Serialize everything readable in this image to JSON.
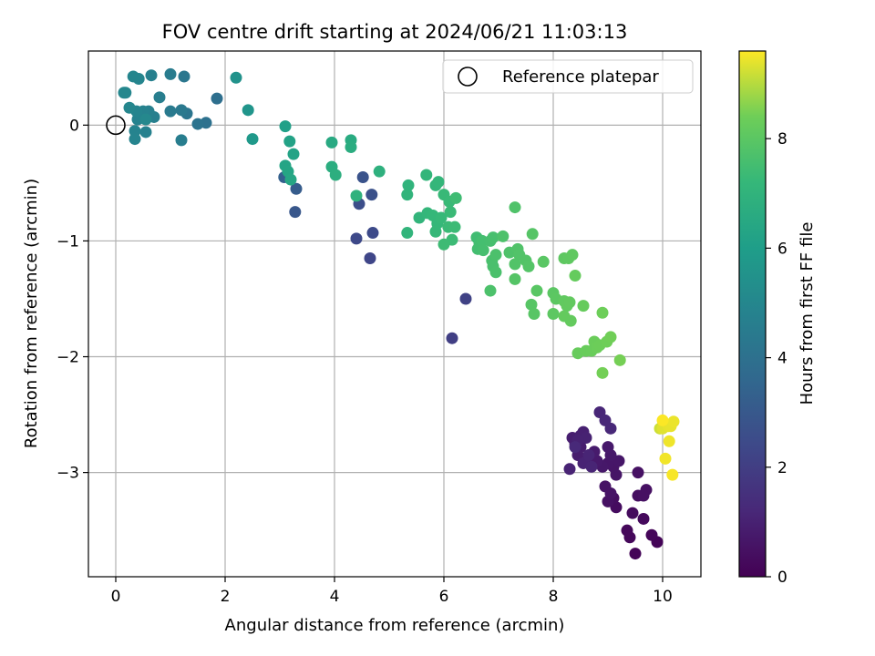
{
  "chart_data": {
    "type": "scatter",
    "title": "FOV centre drift starting at 2024/06/21 11:03:13",
    "xlabel": "Angular distance from reference (arcmin)",
    "ylabel": "Rotation from reference (arcmin)",
    "xlim": [
      -0.5,
      10.7
    ],
    "ylim": [
      -3.9,
      0.64
    ],
    "xticks": [
      0,
      2,
      4,
      6,
      8,
      10
    ],
    "yticks": [
      -3,
      -2,
      -1,
      0
    ],
    "xtick_labels": [
      "0",
      "2",
      "4",
      "6",
      "8",
      "10"
    ],
    "ytick_labels": [
      "−3",
      "−2",
      "−1",
      "0"
    ],
    "grid": true,
    "legend": {
      "position": "top-right",
      "entries": [
        {
          "label": "Reference platepar",
          "marker": "open-circle"
        }
      ]
    },
    "reference_point": {
      "x": 0,
      "y": 0
    },
    "colorbar": {
      "label": "Hours from first FF file",
      "range": [
        0,
        9.6
      ],
      "ticks": [
        0,
        2,
        4,
        6,
        8
      ],
      "tick_labels": [
        "0",
        "2",
        "4",
        "6",
        "8"
      ],
      "colormap": "viridis"
    },
    "points": [
      {
        "x": 9.5,
        "y": -3.7,
        "c": 0.1
      },
      {
        "x": 9.9,
        "y": -3.6,
        "c": 0.1
      },
      {
        "x": 9.8,
        "y": -3.54,
        "c": 0.15
      },
      {
        "x": 9.35,
        "y": -3.5,
        "c": 0.2
      },
      {
        "x": 9.4,
        "y": -3.56,
        "c": 0.2
      },
      {
        "x": 9.65,
        "y": -3.4,
        "c": 0.25
      },
      {
        "x": 9.45,
        "y": -3.35,
        "c": 0.3
      },
      {
        "x": 9.15,
        "y": -3.3,
        "c": 0.35
      },
      {
        "x": 9.1,
        "y": -3.22,
        "c": 0.4
      },
      {
        "x": 9.55,
        "y": -3.2,
        "c": 0.4
      },
      {
        "x": 9.7,
        "y": -3.15,
        "c": 0.45
      },
      {
        "x": 9.65,
        "y": -3.2,
        "c": 0.45
      },
      {
        "x": 9.55,
        "y": -3.0,
        "c": 0.5
      },
      {
        "x": 9.0,
        "y": -3.25,
        "c": 0.5
      },
      {
        "x": 8.95,
        "y": -3.12,
        "c": 0.55
      },
      {
        "x": 9.05,
        "y": -3.18,
        "c": 0.55
      },
      {
        "x": 9.15,
        "y": -3.02,
        "c": 0.6
      },
      {
        "x": 9.1,
        "y": -2.95,
        "c": 0.6
      },
      {
        "x": 9.2,
        "y": -2.9,
        "c": 0.65
      },
      {
        "x": 9.0,
        "y": -2.92,
        "c": 0.65
      },
      {
        "x": 8.9,
        "y": -2.95,
        "c": 0.7
      },
      {
        "x": 9.05,
        "y": -2.85,
        "c": 0.7
      },
      {
        "x": 9.0,
        "y": -2.78,
        "c": 0.75
      },
      {
        "x": 8.8,
        "y": -2.9,
        "c": 0.75
      },
      {
        "x": 8.75,
        "y": -2.82,
        "c": 0.8
      },
      {
        "x": 8.6,
        "y": -2.9,
        "c": 0.8
      },
      {
        "x": 8.5,
        "y": -2.78,
        "c": 0.85
      },
      {
        "x": 8.45,
        "y": -2.85,
        "c": 0.85
      },
      {
        "x": 8.4,
        "y": -2.75,
        "c": 0.9
      },
      {
        "x": 8.35,
        "y": -2.7,
        "c": 0.9
      },
      {
        "x": 8.5,
        "y": -2.68,
        "c": 0.95
      },
      {
        "x": 8.55,
        "y": -2.65,
        "c": 0.95
      },
      {
        "x": 8.6,
        "y": -2.7,
        "c": 1.0
      },
      {
        "x": 8.45,
        "y": -2.72,
        "c": 1.0
      },
      {
        "x": 8.3,
        "y": -2.97,
        "c": 1.05
      },
      {
        "x": 8.55,
        "y": -2.92,
        "c": 1.05
      },
      {
        "x": 8.65,
        "y": -2.85,
        "c": 1.1
      },
      {
        "x": 8.7,
        "y": -2.95,
        "c": 1.1
      },
      {
        "x": 8.85,
        "y": -2.48,
        "c": 1.15
      },
      {
        "x": 9.05,
        "y": -2.62,
        "c": 1.2
      },
      {
        "x": 8.95,
        "y": -2.55,
        "c": 1.2
      },
      {
        "x": 8.4,
        "y": -2.78,
        "c": 1.25
      },
      {
        "x": 6.15,
        "y": -1.84,
        "c": 2.05
      },
      {
        "x": 6.4,
        "y": -1.5,
        "c": 2.15
      },
      {
        "x": 4.65,
        "y": -1.15,
        "c": 2.3
      },
      {
        "x": 4.4,
        "y": -0.98,
        "c": 2.4
      },
      {
        "x": 4.7,
        "y": -0.93,
        "c": 2.45
      },
      {
        "x": 4.45,
        "y": -0.68,
        "c": 2.6
      },
      {
        "x": 4.68,
        "y": -0.6,
        "c": 2.7
      },
      {
        "x": 4.52,
        "y": -0.45,
        "c": 2.8
      },
      {
        "x": 3.28,
        "y": -0.75,
        "c": 2.95
      },
      {
        "x": 3.3,
        "y": -0.55,
        "c": 3.15
      },
      {
        "x": 3.08,
        "y": -0.45,
        "c": 3.3
      },
      {
        "x": 1.85,
        "y": 0.23,
        "c": 3.9
      },
      {
        "x": 1.65,
        "y": 0.02,
        "c": 4.0
      },
      {
        "x": 1.5,
        "y": 0.01,
        "c": 4.1
      },
      {
        "x": 1.3,
        "y": 0.1,
        "c": 4.2
      },
      {
        "x": 1.25,
        "y": 0.42,
        "c": 4.3
      },
      {
        "x": 1.2,
        "y": 0.13,
        "c": 4.4
      },
      {
        "x": 1.0,
        "y": 0.12,
        "c": 4.45
      },
      {
        "x": 1.0,
        "y": 0.44,
        "c": 4.5
      },
      {
        "x": 1.2,
        "y": -0.13,
        "c": 4.55
      },
      {
        "x": 0.8,
        "y": 0.24,
        "c": 4.6
      },
      {
        "x": 0.7,
        "y": 0.07,
        "c": 4.65
      },
      {
        "x": 0.65,
        "y": 0.43,
        "c": 4.7
      },
      {
        "x": 0.6,
        "y": 0.12,
        "c": 4.72
      },
      {
        "x": 0.55,
        "y": -0.06,
        "c": 4.75
      },
      {
        "x": 0.5,
        "y": 0.12,
        "c": 4.78
      },
      {
        "x": 0.45,
        "y": 0.08,
        "c": 4.8
      },
      {
        "x": 0.4,
        "y": 0.05,
        "c": 4.82
      },
      {
        "x": 0.35,
        "y": -0.05,
        "c": 4.85
      },
      {
        "x": 0.35,
        "y": -0.12,
        "c": 4.87
      },
      {
        "x": 0.38,
        "y": 0.12,
        "c": 4.9
      },
      {
        "x": 0.42,
        "y": 0.4,
        "c": 4.92
      },
      {
        "x": 0.32,
        "y": 0.42,
        "c": 4.94
      },
      {
        "x": 0.25,
        "y": 0.15,
        "c": 4.96
      },
      {
        "x": 0.18,
        "y": 0.28,
        "c": 4.98
      },
      {
        "x": 0.15,
        "y": 0.28,
        "c": 5.0
      },
      {
        "x": 0.55,
        "y": 0.05,
        "c": 5.05
      },
      {
        "x": 2.2,
        "y": 0.41,
        "c": 5.5
      },
      {
        "x": 2.42,
        "y": 0.13,
        "c": 5.6
      },
      {
        "x": 2.5,
        "y": -0.12,
        "c": 5.8
      },
      {
        "x": 3.1,
        "y": -0.01,
        "c": 6.1
      },
      {
        "x": 3.18,
        "y": -0.14,
        "c": 6.2
      },
      {
        "x": 3.25,
        "y": -0.25,
        "c": 6.25
      },
      {
        "x": 3.1,
        "y": -0.35,
        "c": 6.3
      },
      {
        "x": 3.15,
        "y": -0.4,
        "c": 6.35
      },
      {
        "x": 3.2,
        "y": -0.47,
        "c": 6.4
      },
      {
        "x": 3.95,
        "y": -0.15,
        "c": 6.55
      },
      {
        "x": 4.3,
        "y": -0.13,
        "c": 6.6
      },
      {
        "x": 4.3,
        "y": -0.19,
        "c": 6.65
      },
      {
        "x": 3.95,
        "y": -0.36,
        "c": 6.7
      },
      {
        "x": 4.02,
        "y": -0.43,
        "c": 6.75
      },
      {
        "x": 4.82,
        "y": -0.4,
        "c": 6.85
      },
      {
        "x": 4.4,
        "y": -0.61,
        "c": 6.9
      },
      {
        "x": 5.35,
        "y": -0.52,
        "c": 7.0
      },
      {
        "x": 5.33,
        "y": -0.6,
        "c": 7.02
      },
      {
        "x": 5.33,
        "y": -0.93,
        "c": 7.05
      },
      {
        "x": 5.55,
        "y": -0.8,
        "c": 7.07
      },
      {
        "x": 5.68,
        "y": -0.43,
        "c": 7.1
      },
      {
        "x": 5.85,
        "y": -0.52,
        "c": 7.12
      },
      {
        "x": 5.9,
        "y": -0.49,
        "c": 7.14
      },
      {
        "x": 5.7,
        "y": -0.76,
        "c": 7.16
      },
      {
        "x": 5.8,
        "y": -0.78,
        "c": 7.18
      },
      {
        "x": 5.88,
        "y": -0.85,
        "c": 7.2
      },
      {
        "x": 5.85,
        "y": -0.92,
        "c": 7.22
      },
      {
        "x": 5.95,
        "y": -0.8,
        "c": 7.24
      },
      {
        "x": 6.0,
        "y": -0.6,
        "c": 7.26
      },
      {
        "x": 6.1,
        "y": -0.66,
        "c": 7.28
      },
      {
        "x": 6.12,
        "y": -0.75,
        "c": 7.3
      },
      {
        "x": 6.08,
        "y": -0.88,
        "c": 7.32
      },
      {
        "x": 6.2,
        "y": -0.88,
        "c": 7.34
      },
      {
        "x": 6.15,
        "y": -0.99,
        "c": 7.36
      },
      {
        "x": 6.0,
        "y": -1.03,
        "c": 7.38
      },
      {
        "x": 6.22,
        "y": -0.63,
        "c": 7.4
      },
      {
        "x": 6.6,
        "y": -0.97,
        "c": 7.45
      },
      {
        "x": 6.65,
        "y": -1.02,
        "c": 7.5
      },
      {
        "x": 6.62,
        "y": -1.07,
        "c": 7.52
      },
      {
        "x": 6.7,
        "y": -1.0,
        "c": 7.54
      },
      {
        "x": 6.72,
        "y": -1.08,
        "c": 7.56
      },
      {
        "x": 6.85,
        "y": -1.0,
        "c": 7.58
      },
      {
        "x": 6.9,
        "y": -0.97,
        "c": 7.6
      },
      {
        "x": 6.88,
        "y": -1.17,
        "c": 7.62
      },
      {
        "x": 6.9,
        "y": -1.22,
        "c": 7.64
      },
      {
        "x": 6.95,
        "y": -1.27,
        "c": 7.66
      },
      {
        "x": 6.95,
        "y": -1.12,
        "c": 7.68
      },
      {
        "x": 6.85,
        "y": -1.43,
        "c": 7.7
      },
      {
        "x": 7.08,
        "y": -0.96,
        "c": 7.72
      },
      {
        "x": 7.2,
        "y": -1.1,
        "c": 7.74
      },
      {
        "x": 7.3,
        "y": -0.71,
        "c": 7.76
      },
      {
        "x": 7.35,
        "y": -1.07,
        "c": 7.78
      },
      {
        "x": 7.38,
        "y": -1.12,
        "c": 7.8
      },
      {
        "x": 7.3,
        "y": -1.2,
        "c": 7.82
      },
      {
        "x": 7.5,
        "y": -1.17,
        "c": 7.84
      },
      {
        "x": 7.55,
        "y": -1.22,
        "c": 7.86
      },
      {
        "x": 7.3,
        "y": -1.33,
        "c": 7.88
      },
      {
        "x": 7.62,
        "y": -0.94,
        "c": 7.9
      },
      {
        "x": 7.6,
        "y": -1.55,
        "c": 7.92
      },
      {
        "x": 7.65,
        "y": -1.63,
        "c": 7.94
      },
      {
        "x": 7.7,
        "y": -1.43,
        "c": 7.96
      },
      {
        "x": 7.82,
        "y": -1.18,
        "c": 7.98
      },
      {
        "x": 8.0,
        "y": -1.45,
        "c": 8.0
      },
      {
        "x": 8.05,
        "y": -1.5,
        "c": 8.02
      },
      {
        "x": 8.0,
        "y": -1.63,
        "c": 8.04
      },
      {
        "x": 8.2,
        "y": -1.15,
        "c": 8.06
      },
      {
        "x": 8.28,
        "y": -1.15,
        "c": 8.08
      },
      {
        "x": 8.35,
        "y": -1.12,
        "c": 8.1
      },
      {
        "x": 8.2,
        "y": -1.52,
        "c": 8.12
      },
      {
        "x": 8.25,
        "y": -1.56,
        "c": 8.14
      },
      {
        "x": 8.3,
        "y": -1.53,
        "c": 8.16
      },
      {
        "x": 8.2,
        "y": -1.65,
        "c": 8.18
      },
      {
        "x": 8.32,
        "y": -1.69,
        "c": 8.2
      },
      {
        "x": 8.4,
        "y": -1.3,
        "c": 8.22
      },
      {
        "x": 8.55,
        "y": -1.56,
        "c": 8.24
      },
      {
        "x": 8.45,
        "y": -1.97,
        "c": 8.26
      },
      {
        "x": 8.6,
        "y": -1.95,
        "c": 8.28
      },
      {
        "x": 8.7,
        "y": -1.95,
        "c": 8.3
      },
      {
        "x": 8.75,
        "y": -1.87,
        "c": 8.32
      },
      {
        "x": 8.8,
        "y": -1.92,
        "c": 8.34
      },
      {
        "x": 8.85,
        "y": -1.9,
        "c": 8.36
      },
      {
        "x": 8.9,
        "y": -1.62,
        "c": 8.38
      },
      {
        "x": 8.98,
        "y": -1.87,
        "c": 8.4
      },
      {
        "x": 9.05,
        "y": -1.83,
        "c": 8.42
      },
      {
        "x": 8.9,
        "y": -2.14,
        "c": 8.44
      },
      {
        "x": 9.22,
        "y": -2.03,
        "c": 8.46
      },
      {
        "x": 9.95,
        "y": -2.62,
        "c": 9.2
      },
      {
        "x": 10.05,
        "y": -2.58,
        "c": 9.3
      },
      {
        "x": 10.0,
        "y": -2.62,
        "c": 9.35
      },
      {
        "x": 10.1,
        "y": -2.6,
        "c": 9.4
      },
      {
        "x": 10.15,
        "y": -2.6,
        "c": 9.42
      },
      {
        "x": 10.2,
        "y": -2.56,
        "c": 9.45
      },
      {
        "x": 10.12,
        "y": -2.73,
        "c": 9.48
      },
      {
        "x": 10.05,
        "y": -2.88,
        "c": 9.5
      },
      {
        "x": 10.18,
        "y": -3.02,
        "c": 9.55
      },
      {
        "x": 10.0,
        "y": -2.55,
        "c": 9.58
      }
    ]
  }
}
